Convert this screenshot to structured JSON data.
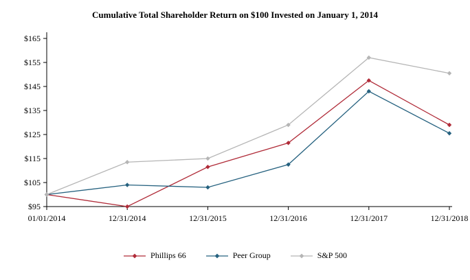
{
  "chart_data": {
    "type": "line",
    "title": "Cumulative Total Shareholder Return on $100 Invested on January 1, 2014",
    "categories": [
      "01/01/2014",
      "12/31/2014",
      "12/31/2015",
      "12/31/2016",
      "12/31/2017",
      "12/31/2018"
    ],
    "series": [
      {
        "name": "Phillips 66",
        "color": "#b02b38",
        "values": [
          100,
          95,
          111.5,
          121.5,
          147.5,
          129
        ]
      },
      {
        "name": "Peer Group",
        "color": "#25617f",
        "values": [
          100,
          104,
          103,
          112.5,
          143,
          125.5
        ]
      },
      {
        "name": "S&P 500",
        "color": "#b5b5b5",
        "values": [
          100,
          113.5,
          115,
          129,
          157,
          150.5
        ]
      }
    ],
    "ylim": [
      95,
      165
    ],
    "y_ticks": [
      95,
      105,
      115,
      125,
      135,
      145,
      155,
      165
    ],
    "y_tick_prefix": "$",
    "marker": "diamond",
    "grid": false,
    "legend_position": "bottom",
    "axis_color": "#000000"
  }
}
